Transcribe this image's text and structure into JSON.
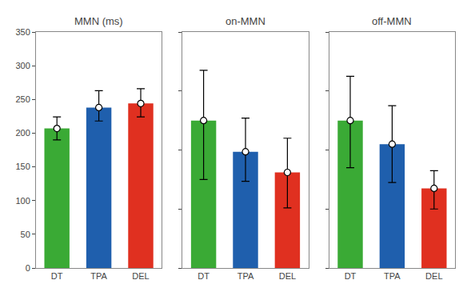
{
  "chart_data": [
    {
      "type": "bar",
      "title": "MMN (ms)",
      "categories": [
        "DT",
        "TPA",
        "DEL"
      ],
      "values": [
        207,
        238,
        244
      ],
      "error_low": [
        17,
        20,
        20
      ],
      "error_high": [
        17,
        25,
        22
      ],
      "colors": [
        "#3aaa35",
        "#1f5fad",
        "#e03020"
      ],
      "marker": "circle",
      "ylim": [
        0,
        350
      ],
      "yticks": [
        0,
        50,
        100,
        150,
        200,
        250,
        300,
        350
      ],
      "grid": false
    },
    {
      "type": "bar",
      "title": "on-MMN",
      "categories": [
        "DT",
        "TPA",
        "DEL"
      ],
      "values": [
        2.5,
        1.97,
        1.62
      ],
      "error_low": [
        1.0,
        0.5,
        0.6
      ],
      "error_high": [
        0.85,
        0.57,
        0.58
      ],
      "colors": [
        "#3aaa35",
        "#1f5fad",
        "#e03020"
      ],
      "marker": "circle",
      "ylim": [
        0,
        4
      ],
      "yticks": [
        0,
        1,
        2,
        3,
        4
      ],
      "grid": false,
      "tick_labels": "x"
    },
    {
      "type": "bar",
      "title": "off-MMN",
      "categories": [
        "DT",
        "TPA",
        "DEL"
      ],
      "values": [
        2.5,
        2.1,
        1.35
      ],
      "error_low": [
        0.8,
        0.65,
        0.35
      ],
      "error_high": [
        0.75,
        0.65,
        0.3
      ],
      "colors": [
        "#3aaa35",
        "#1f5fad",
        "#e03020"
      ],
      "marker": "circle",
      "ylim": [
        0,
        4
      ],
      "yticks": [
        0,
        1,
        2,
        3,
        4
      ],
      "grid": false,
      "tick_labels": "x"
    }
  ]
}
